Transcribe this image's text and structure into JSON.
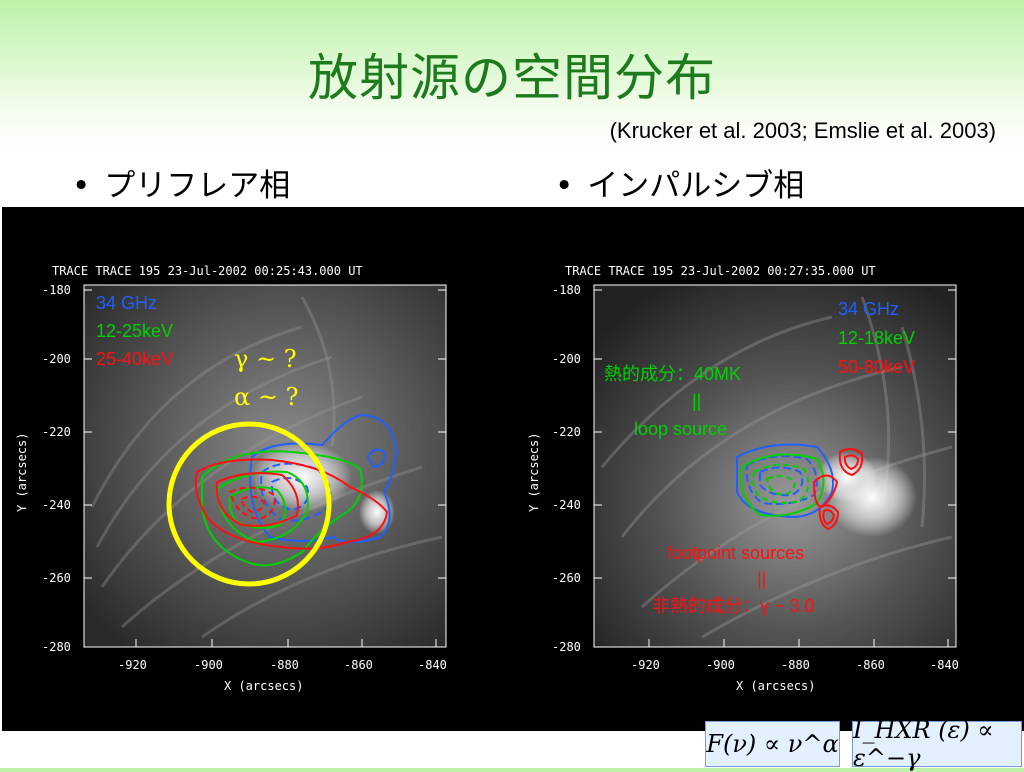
{
  "title": "放射源の空間分布",
  "citation": "(Krucker et al. 2003; Emslie et al. 2003)",
  "bullets": {
    "left": "プリフレア相",
    "right": "インパルシブ相",
    "marker": "•"
  },
  "left_plot": {
    "header": "TRACE TRACE 195 23-Jul-2002 00:25:43.000 UT",
    "y_ticks": [
      "-180",
      "-200",
      "-220",
      "-240",
      "-260",
      "-280"
    ],
    "x_ticks": [
      "-920",
      "-900",
      "-880",
      "-860",
      "-840"
    ],
    "y_label": "Y (arcsecs)",
    "x_label": "X (arcsecs)",
    "legend": [
      "34 GHz",
      "12-25keV",
      "25-40keV"
    ],
    "gamma_text": "γ ~ ?",
    "alpha_text": "α ~ ?"
  },
  "right_plot": {
    "header": "TRACE TRACE 195 23-Jul-2002 00:27:35.000 UT",
    "y_ticks": [
      "-180",
      "-200",
      "-220",
      "-240",
      "-260",
      "-280"
    ],
    "x_ticks": [
      "-920",
      "-900",
      "-880",
      "-860",
      "-840"
    ],
    "y_label": "Y (arcsecs)",
    "x_label": "X (arcsecs)",
    "legend": [
      "34 GHz",
      "12-18keV",
      "50-80keV"
    ],
    "thermal_label": "熱的成分：40MK",
    "thermal_eq": "||",
    "loop_label": "loop source",
    "footpoint_label": "footpoint sources",
    "footpoint_eq": "||",
    "nonthermal_label": "非熱的成分：γ ~ 3.0"
  },
  "colors": {
    "title": "#1d7a1d",
    "blue": "#2060ff",
    "green": "#00d000",
    "red": "#ff1010",
    "yellow": "#ffff00"
  },
  "formulas": {
    "left": "F(ν) ∝ ν^α",
    "right": "I_HXR (ε) ∝ ε^−γ"
  }
}
